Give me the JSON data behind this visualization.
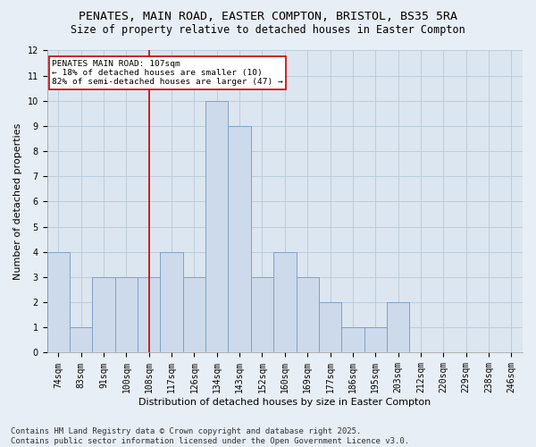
{
  "title1": "PENATES, MAIN ROAD, EASTER COMPTON, BRISTOL, BS35 5RA",
  "title2": "Size of property relative to detached houses in Easter Compton",
  "xlabel": "Distribution of detached houses by size in Easter Compton",
  "ylabel": "Number of detached properties",
  "categories": [
    "74sqm",
    "83sqm",
    "91sqm",
    "100sqm",
    "108sqm",
    "117sqm",
    "126sqm",
    "134sqm",
    "143sqm",
    "152sqm",
    "160sqm",
    "169sqm",
    "177sqm",
    "186sqm",
    "195sqm",
    "203sqm",
    "212sqm",
    "220sqm",
    "229sqm",
    "238sqm",
    "246sqm"
  ],
  "values": [
    4,
    1,
    3,
    3,
    3,
    4,
    3,
    10,
    9,
    3,
    4,
    3,
    2,
    1,
    1,
    2,
    0,
    0,
    0,
    0,
    0
  ],
  "bar_color": "#cddaeb",
  "bar_edge_color": "#7ca3c7",
  "vline_x_index": 4,
  "vline_color": "#cc0000",
  "annotation_text": "PENATES MAIN ROAD: 107sqm\n← 18% of detached houses are smaller (10)\n82% of semi-detached houses are larger (47) →",
  "annotation_box_color": "white",
  "annotation_box_edge": "#cc0000",
  "ylim": [
    0,
    12
  ],
  "yticks": [
    0,
    1,
    2,
    3,
    4,
    5,
    6,
    7,
    8,
    9,
    10,
    11,
    12
  ],
  "footer": "Contains HM Land Registry data © Crown copyright and database right 2025.\nContains public sector information licensed under the Open Government Licence v3.0.",
  "bg_color": "#e8eef5",
  "plot_bg_color": "#dce6f0",
  "grid_color": "#b8c8d8",
  "title_fontsize": 9.5,
  "subtitle_fontsize": 8.5,
  "tick_fontsize": 7,
  "label_fontsize": 8,
  "footer_fontsize": 6.5
}
